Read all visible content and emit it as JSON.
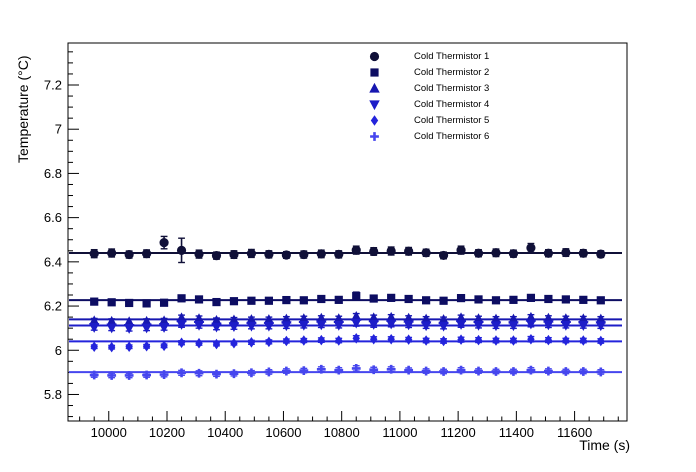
{
  "figure": {
    "background": "#ffffff",
    "frame_color": "#000000"
  },
  "chart_data": {
    "type": "scatter",
    "title": "",
    "xlabel": "Time (s)",
    "ylabel": "Temperature (°C)",
    "xlim": [
      9860,
      11780
    ],
    "ylim": [
      5.68,
      7.39
    ],
    "grid": false,
    "legend_position": "top-right-inside",
    "x_major_ticks": [
      10000,
      10200,
      10400,
      10600,
      10800,
      11000,
      11200,
      11400,
      11600
    ],
    "x_tick_labels": [
      "10000",
      "10200",
      "10400",
      "10600",
      "10800",
      "11000",
      "11200",
      "11400",
      "11600"
    ],
    "x_minor_step": 50,
    "y_major_ticks": [
      5.8,
      6.0,
      6.2,
      6.4,
      6.6,
      6.8,
      7.0,
      7.2
    ],
    "y_tick_labels": [
      "5.8",
      "6",
      "6.2",
      "6.4",
      "6.6",
      "6.8",
      "7",
      "7.2"
    ],
    "y_minor_step": 0.05,
    "x": [
      9950,
      10010,
      10070,
      10130,
      10190,
      10250,
      10310,
      10370,
      10430,
      10490,
      10550,
      10610,
      10670,
      10730,
      10790,
      10850,
      10910,
      10970,
      11030,
      11090,
      11150,
      11210,
      11270,
      11330,
      11390,
      11450,
      11510,
      11570,
      11630,
      11690
    ],
    "series": [
      {
        "name": "Cold Thermistor 1",
        "marker": "circle",
        "color": "#101038",
        "fit_line": 6.44,
        "values": [
          6.437,
          6.44,
          6.433,
          6.437,
          6.487,
          6.452,
          6.435,
          6.428,
          6.433,
          6.438,
          6.434,
          6.431,
          6.433,
          6.436,
          6.434,
          6.453,
          6.447,
          6.449,
          6.448,
          6.441,
          6.429,
          6.453,
          6.439,
          6.441,
          6.437,
          6.463,
          6.439,
          6.442,
          6.439,
          6.435
        ],
        "errors": [
          0.018,
          0.018,
          0.016,
          0.017,
          0.028,
          0.055,
          0.018,
          0.016,
          0.017,
          0.018,
          0.016,
          0.015,
          0.016,
          0.017,
          0.016,
          0.018,
          0.017,
          0.018,
          0.017,
          0.016,
          0.015,
          0.018,
          0.016,
          0.017,
          0.016,
          0.02,
          0.016,
          0.017,
          0.016,
          0.015
        ]
      },
      {
        "name": "Cold Thermistor 2",
        "marker": "square",
        "color": "#0d0d62",
        "fit_line": 6.227,
        "values": [
          6.22,
          6.217,
          6.214,
          6.212,
          6.215,
          6.235,
          6.23,
          6.218,
          6.222,
          6.224,
          6.224,
          6.227,
          6.226,
          6.232,
          6.228,
          6.245,
          6.234,
          6.237,
          6.232,
          6.226,
          6.224,
          6.236,
          6.23,
          6.226,
          6.228,
          6.237,
          6.232,
          6.23,
          6.228,
          6.226
        ],
        "errors": [
          0.012,
          0.012,
          0.011,
          0.012,
          0.012,
          0.014,
          0.013,
          0.011,
          0.012,
          0.012,
          0.012,
          0.012,
          0.012,
          0.012,
          0.012,
          0.018,
          0.013,
          0.013,
          0.012,
          0.012,
          0.011,
          0.013,
          0.012,
          0.012,
          0.012,
          0.014,
          0.012,
          0.012,
          0.012,
          0.011
        ]
      },
      {
        "name": "Cold Thermistor 3",
        "marker": "triangle-up",
        "color": "#1717b0",
        "fit_line": 6.14,
        "values": [
          6.132,
          6.13,
          6.128,
          6.13,
          6.132,
          6.146,
          6.142,
          6.134,
          6.136,
          6.138,
          6.138,
          6.14,
          6.142,
          6.144,
          6.142,
          6.152,
          6.146,
          6.148,
          6.144,
          6.14,
          6.138,
          6.146,
          6.142,
          6.14,
          6.14,
          6.148,
          6.144,
          6.142,
          6.141,
          6.14
        ],
        "errors": [
          0.012,
          0.012,
          0.012,
          0.012,
          0.012,
          0.013,
          0.013,
          0.012,
          0.012,
          0.012,
          0.012,
          0.012,
          0.012,
          0.012,
          0.012,
          0.014,
          0.013,
          0.013,
          0.012,
          0.012,
          0.012,
          0.013,
          0.012,
          0.012,
          0.012,
          0.013,
          0.012,
          0.012,
          0.012,
          0.012
        ]
      },
      {
        "name": "Cold Thermistor 4",
        "marker": "triangle-down",
        "color": "#1d1dc8",
        "fit_line": 6.112,
        "values": [
          6.104,
          6.102,
          6.1,
          6.102,
          6.104,
          6.118,
          6.114,
          6.106,
          6.108,
          6.11,
          6.11,
          6.112,
          6.114,
          6.116,
          6.114,
          6.124,
          6.118,
          6.12,
          6.116,
          6.112,
          6.11,
          6.118,
          6.114,
          6.112,
          6.112,
          6.12,
          6.116,
          6.114,
          6.113,
          6.112
        ],
        "errors": [
          0.013,
          0.013,
          0.013,
          0.013,
          0.013,
          0.014,
          0.014,
          0.013,
          0.013,
          0.013,
          0.013,
          0.013,
          0.013,
          0.013,
          0.013,
          0.015,
          0.014,
          0.014,
          0.013,
          0.013,
          0.013,
          0.014,
          0.013,
          0.013,
          0.013,
          0.014,
          0.013,
          0.013,
          0.013,
          0.013
        ]
      },
      {
        "name": "Cold Thermistor 5",
        "marker": "diamond",
        "color": "#2424dc",
        "fit_line": 6.04,
        "values": [
          6.016,
          6.014,
          6.016,
          6.018,
          6.02,
          6.034,
          6.032,
          6.028,
          6.032,
          6.036,
          6.038,
          6.042,
          6.044,
          6.046,
          6.044,
          6.054,
          6.05,
          6.05,
          6.048,
          6.044,
          6.042,
          6.048,
          6.046,
          6.044,
          6.044,
          6.05,
          6.046,
          6.044,
          6.044,
          6.042
        ],
        "errors": [
          0.008,
          0.008,
          0.008,
          0.008,
          0.008,
          0.009,
          0.009,
          0.008,
          0.008,
          0.009,
          0.009,
          0.009,
          0.009,
          0.01,
          0.01,
          0.012,
          0.011,
          0.011,
          0.01,
          0.01,
          0.01,
          0.011,
          0.011,
          0.01,
          0.01,
          0.012,
          0.011,
          0.01,
          0.01,
          0.01
        ]
      },
      {
        "name": "Cold Thermistor 6",
        "marker": "plus",
        "color": "#4646ee",
        "fit_line": 5.901,
        "values": [
          5.888,
          5.886,
          5.886,
          5.888,
          5.89,
          5.898,
          5.896,
          5.892,
          5.894,
          5.898,
          5.902,
          5.906,
          5.908,
          5.914,
          5.91,
          5.918,
          5.912,
          5.914,
          5.91,
          5.906,
          5.904,
          5.91,
          5.906,
          5.904,
          5.904,
          5.91,
          5.906,
          5.904,
          5.904,
          5.902
        ],
        "errors": [
          0.01,
          0.01,
          0.01,
          0.01,
          0.01,
          0.011,
          0.011,
          0.01,
          0.01,
          0.01,
          0.01,
          0.01,
          0.01,
          0.011,
          0.011,
          0.012,
          0.011,
          0.011,
          0.01,
          0.01,
          0.01,
          0.011,
          0.01,
          0.01,
          0.01,
          0.011,
          0.01,
          0.01,
          0.01,
          0.01
        ]
      }
    ]
  }
}
